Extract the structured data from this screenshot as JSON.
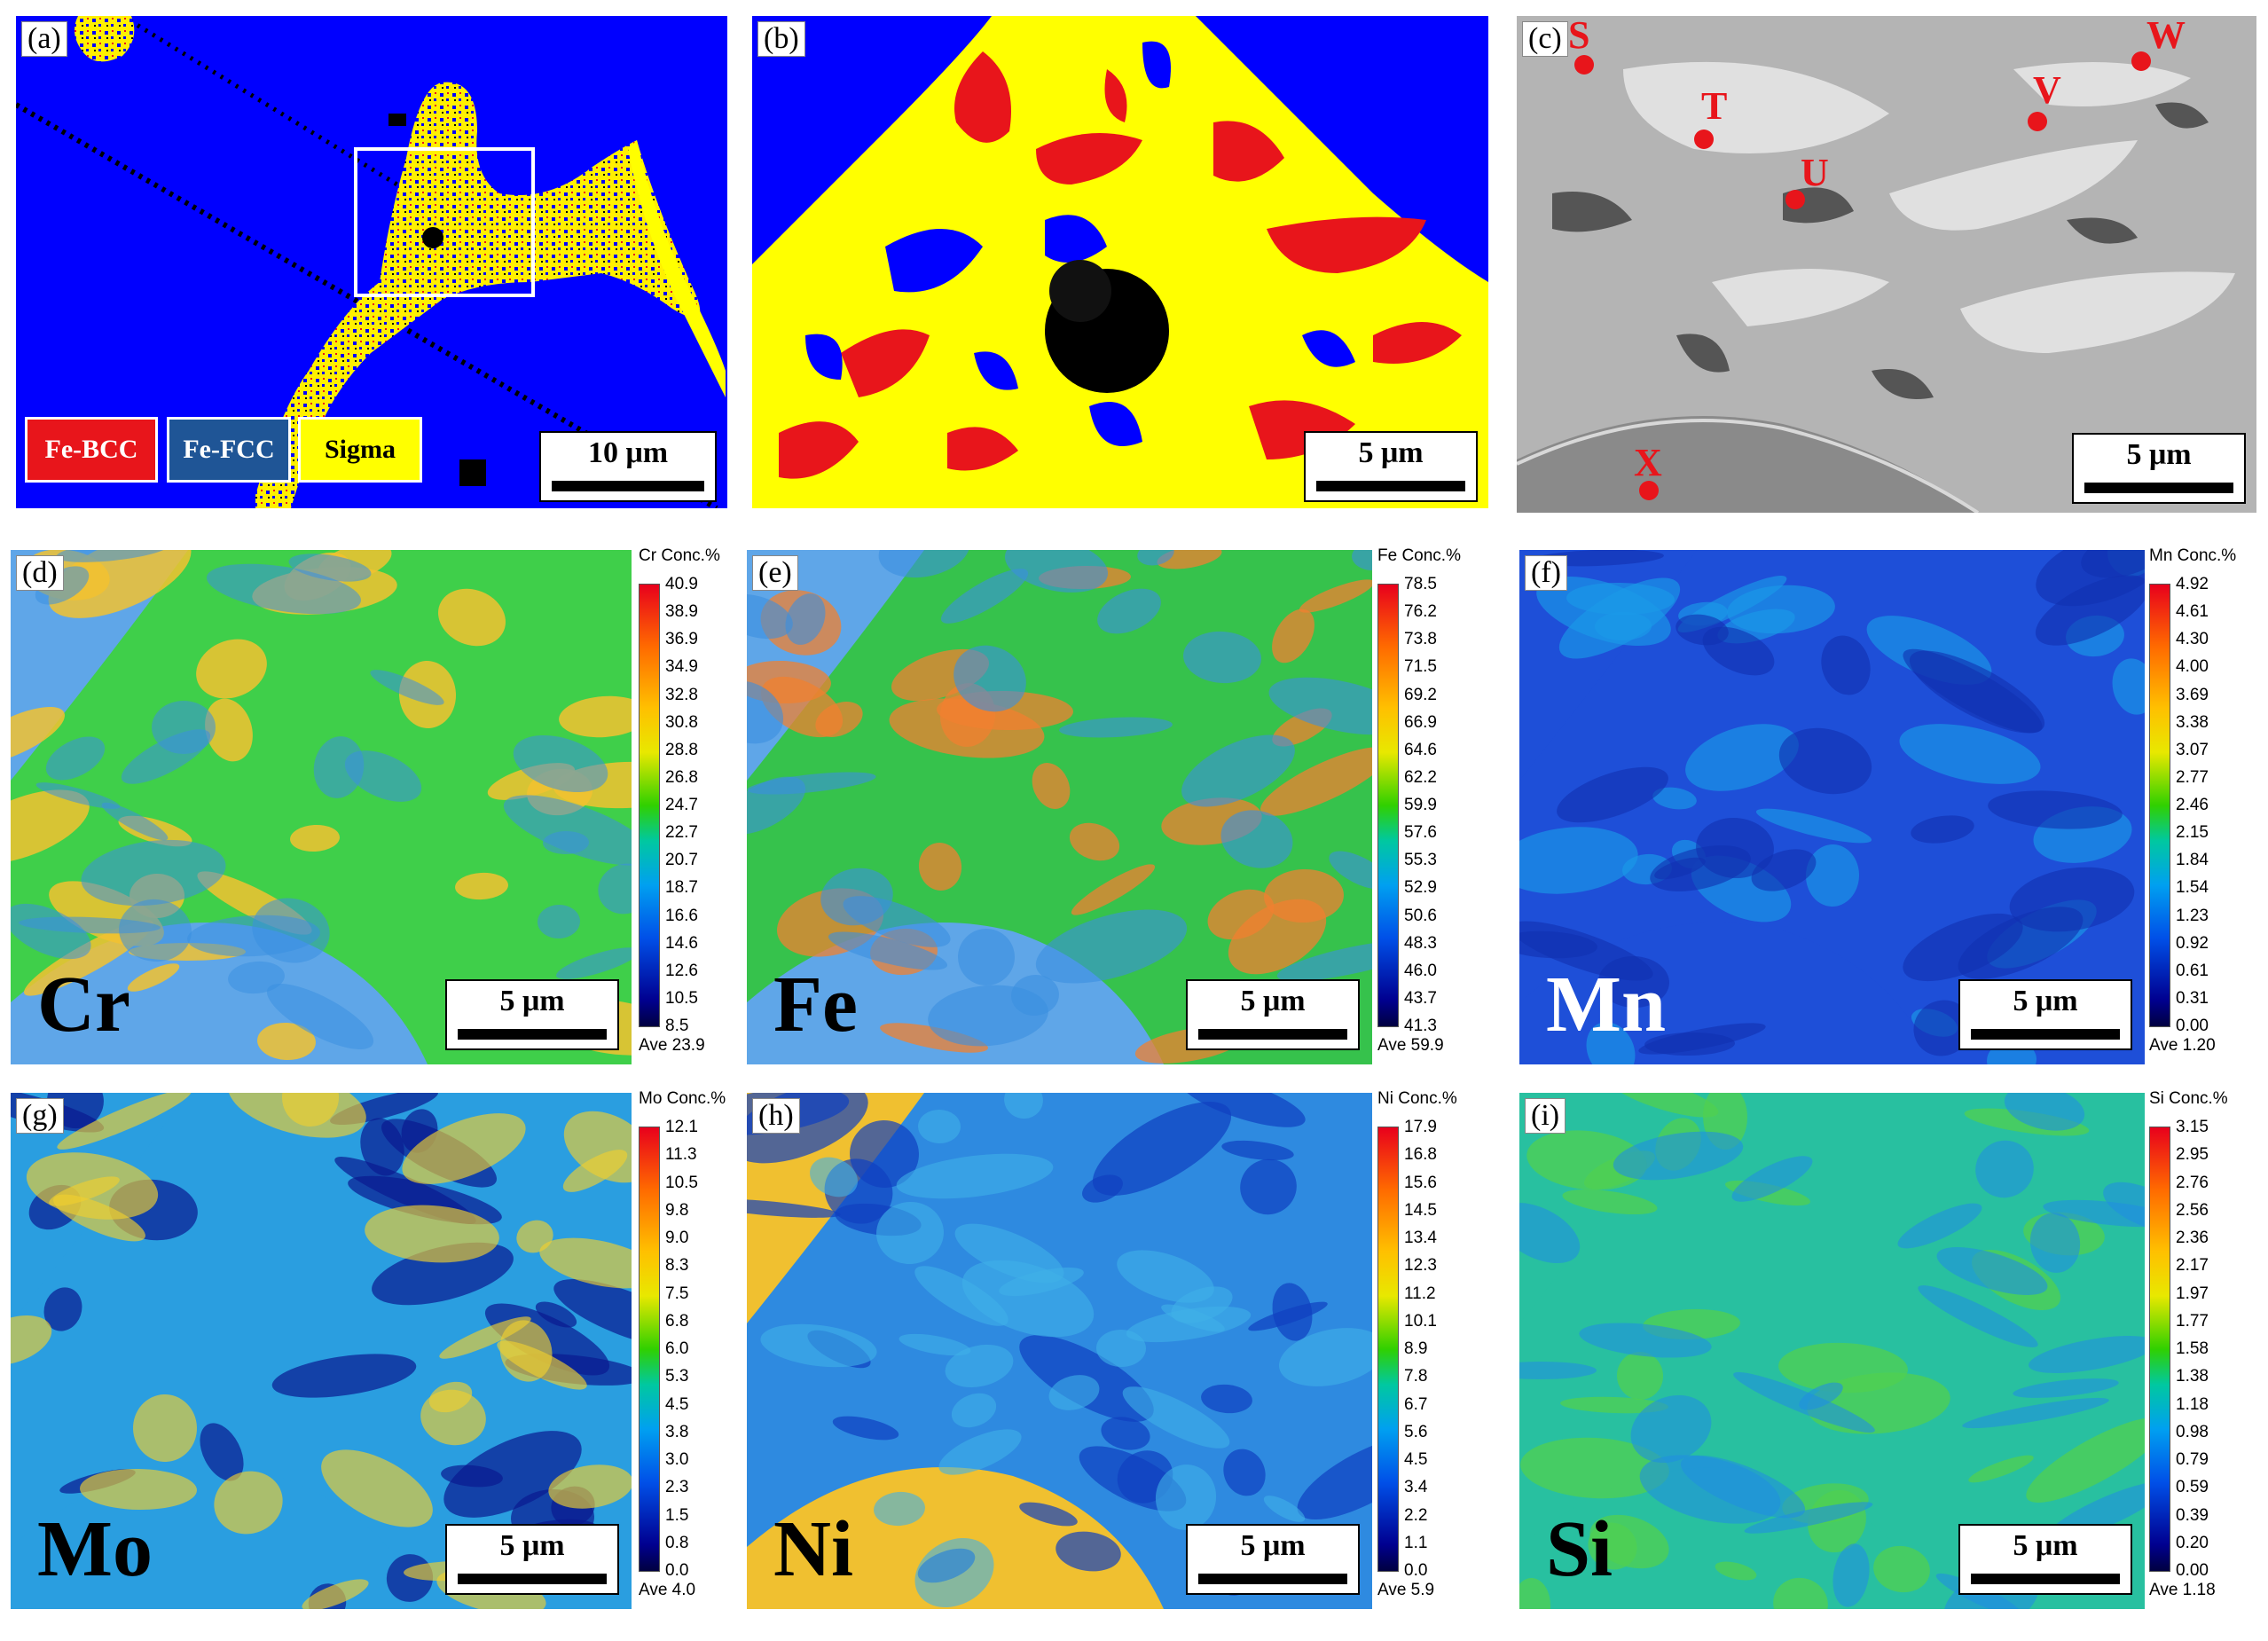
{
  "panels": {
    "a": {
      "label": "(a)",
      "scale": "10 μm",
      "legend": [
        {
          "text": "Fe-BCC",
          "color": "#e8151b"
        },
        {
          "text": "Fe-FCC",
          "color": "#1f5596"
        },
        {
          "text": "Sigma",
          "color": "#ffff00"
        }
      ]
    },
    "b": {
      "label": "(b)",
      "scale": "5 μm"
    },
    "c": {
      "label": "(c)",
      "scale": "5 μm",
      "points": [
        "S",
        "T",
        "U",
        "V",
        "W",
        "X"
      ]
    },
    "d": {
      "label": "(d)",
      "scale": "5 μm",
      "element": "Cr",
      "cb_title": "Cr  Conc.%",
      "ticks": [
        "40.9",
        "38.9",
        "36.9",
        "34.9",
        "32.8",
        "30.8",
        "28.8",
        "26.8",
        "24.7",
        "22.7",
        "20.7",
        "18.7",
        "16.6",
        "14.6",
        "12.6",
        "10.5",
        "8.5"
      ],
      "ave": "Ave 23.9"
    },
    "e": {
      "label": "(e)",
      "scale": "5 μm",
      "element": "Fe",
      "cb_title": "Fe  Conc.%",
      "ticks": [
        "78.5",
        "76.2",
        "73.8",
        "71.5",
        "69.2",
        "66.9",
        "64.6",
        "62.2",
        "59.9",
        "57.6",
        "55.3",
        "52.9",
        "50.6",
        "48.3",
        "46.0",
        "43.7",
        "41.3"
      ],
      "ave": "Ave 59.9"
    },
    "f": {
      "label": "(f)",
      "scale": "5 μm",
      "element": "Mn",
      "cb_title": "Mn  Conc.%",
      "ticks": [
        "4.92",
        "4.61",
        "4.30",
        "4.00",
        "3.69",
        "3.38",
        "3.07",
        "2.77",
        "2.46",
        "2.15",
        "1.84",
        "1.54",
        "1.23",
        "0.92",
        "0.61",
        "0.31",
        "0.00"
      ],
      "ave": "Ave 1.20"
    },
    "g": {
      "label": "(g)",
      "scale": "5 μm",
      "element": "Mo",
      "cb_title": "Mo  Conc.%",
      "ticks": [
        "12.1",
        "11.3",
        "10.5",
        "9.8",
        "9.0",
        "8.3",
        "7.5",
        "6.8",
        "6.0",
        "5.3",
        "4.5",
        "3.8",
        "3.0",
        "2.3",
        "1.5",
        "0.8",
        "0.0"
      ],
      "ave": "Ave 4.0"
    },
    "h": {
      "label": "(h)",
      "scale": "5 μm",
      "element": "Ni",
      "cb_title": "Ni  Conc.%",
      "ticks": [
        "17.9",
        "16.8",
        "15.6",
        "14.5",
        "13.4",
        "12.3",
        "11.2",
        "10.1",
        "8.9",
        "7.8",
        "6.7",
        "5.6",
        "4.5",
        "3.4",
        "2.2",
        "1.1",
        "0.0"
      ],
      "ave": "Ave 5.9"
    },
    "i": {
      "label": "(i)",
      "scale": "5 μm",
      "element": "Si",
      "cb_title": "Si  Conc.%",
      "ticks": [
        "3.15",
        "2.95",
        "2.76",
        "2.56",
        "2.36",
        "2.17",
        "1.97",
        "1.77",
        "1.58",
        "1.38",
        "1.18",
        "0.98",
        "0.79",
        "0.59",
        "0.39",
        "0.20",
        "0.00"
      ],
      "ave": "Ave 1.18"
    }
  },
  "colors": {
    "phase_blue": "#0000ff",
    "phase_red": "#e8151b",
    "phase_yellow": "#ffff00",
    "fcc_box": "#1f5596"
  }
}
